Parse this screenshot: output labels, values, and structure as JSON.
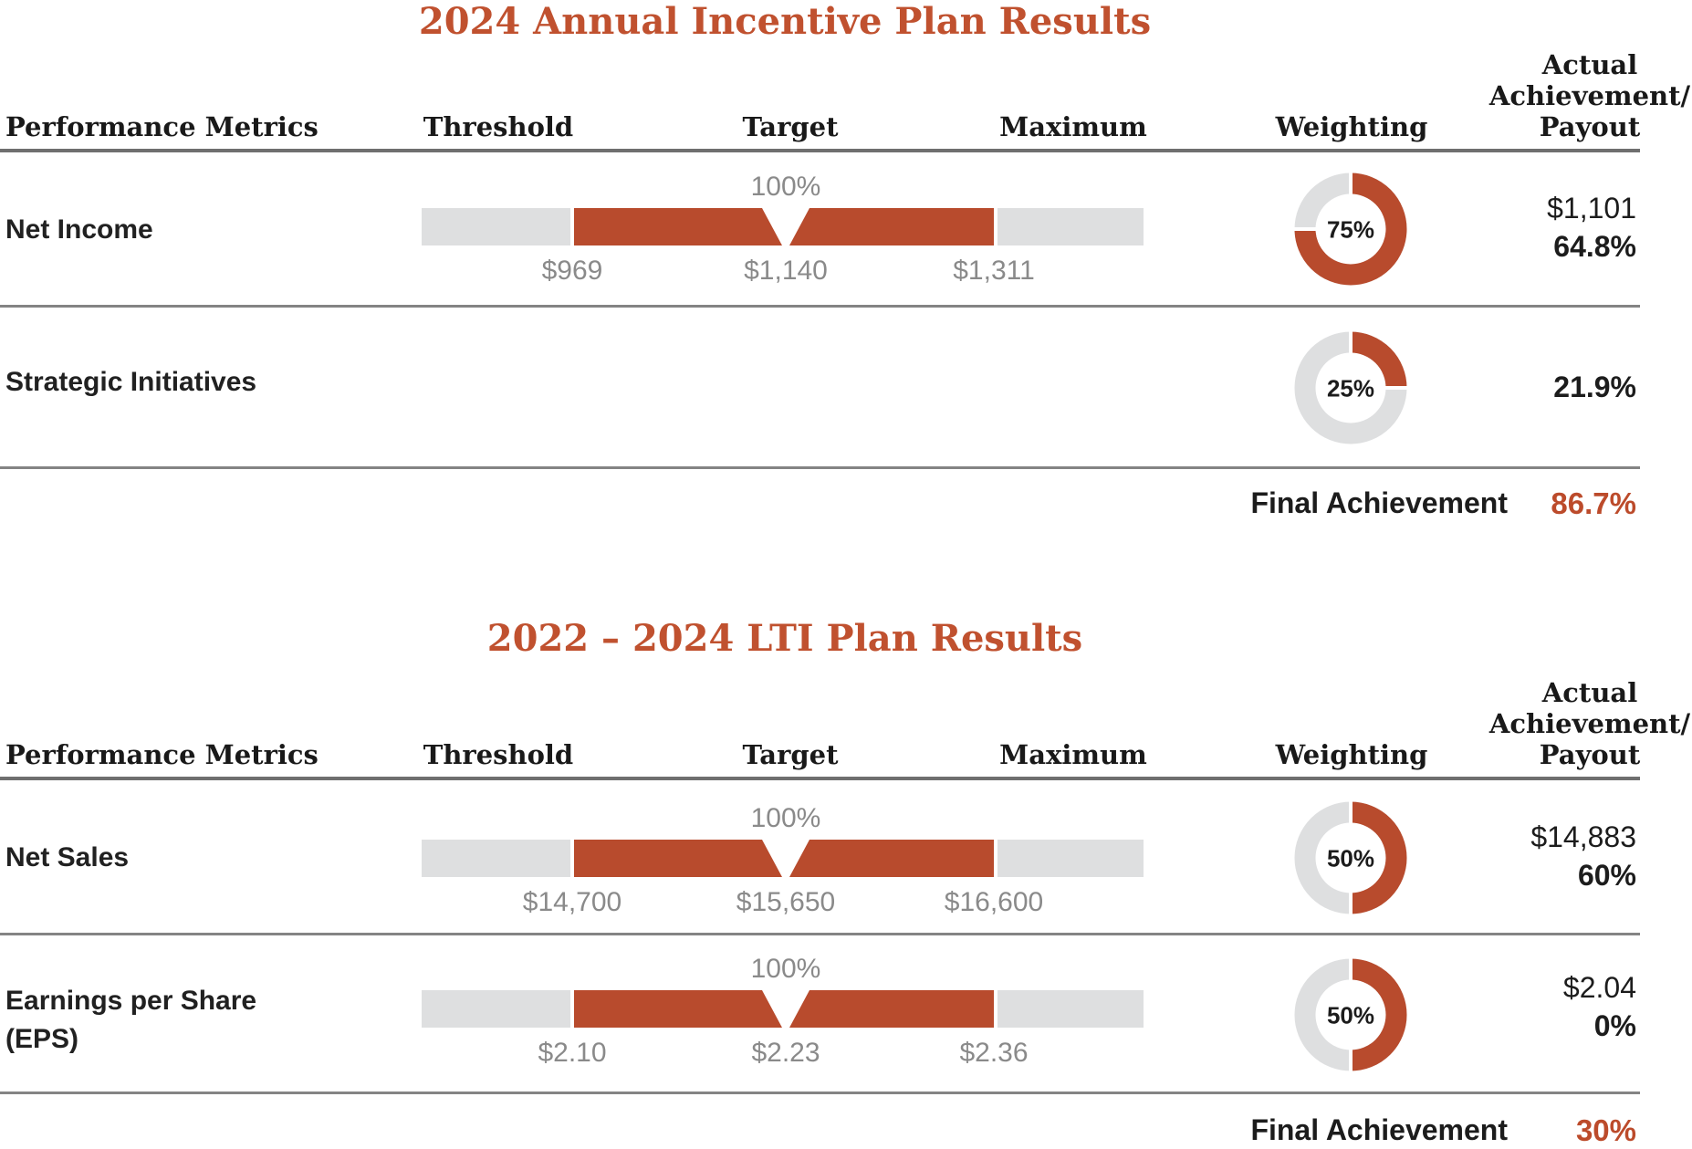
{
  "colors": {
    "accent": "#b84b2d",
    "title": "#c0512f",
    "track_gray": "#dedfe0",
    "rule_gray": "#6f6f6f",
    "note_gray": "#8a8a8a"
  },
  "tables": [
    {
      "title": "2024 Annual Incentive Plan Results",
      "headers": {
        "metrics": "Performance Metrics",
        "threshold": "Threshold",
        "target": "Target",
        "maximum": "Maximum",
        "weighting": "Weighting",
        "payout_line1": "Actual",
        "payout_line2": "Achievement/",
        "payout_line3": "Payout"
      },
      "rows": [
        {
          "metric": "Net Income",
          "target_pct": "100%",
          "threshold_label": "$969",
          "target_label": "$1,140",
          "maximum_label": "$1,311",
          "weighting_label": "75%",
          "weighting_value": 75,
          "payout_top": "$1,101",
          "payout_bottom": "64.8%"
        },
        {
          "metric": "Strategic Initiatives",
          "weighting_label": "25%",
          "weighting_value": 25,
          "payout_bottom": "21.9%"
        }
      ],
      "footer": {
        "label": "Final Achievement",
        "value": "86.7%"
      }
    },
    {
      "title": "2022 – 2024 LTI Plan Results",
      "headers": {
        "metrics": "Performance Metrics",
        "threshold": "Threshold",
        "target": "Target",
        "maximum": "Maximum",
        "weighting": "Weighting",
        "payout_line1": "Actual",
        "payout_line2": "Achievement/",
        "payout_line3": "Payout"
      },
      "rows": [
        {
          "metric": "Net Sales",
          "target_pct": "100%",
          "threshold_label": "$14,700",
          "target_label": "$15,650",
          "maximum_label": "$16,600",
          "weighting_label": "50%",
          "weighting_value": 50,
          "payout_top": "$14,883",
          "payout_bottom": "60%"
        },
        {
          "metric": "Earnings per Share",
          "metric_line2": "(EPS)",
          "target_pct": "100%",
          "threshold_label": "$2.10",
          "target_label": "$2.23",
          "maximum_label": "$2.36",
          "weighting_label": "50%",
          "weighting_value": 50,
          "payout_top": "$2.04",
          "payout_bottom": "0%"
        }
      ],
      "footer": {
        "label": "Final Achievement",
        "value": "30%"
      }
    }
  ],
  "chart_data": [
    {
      "type": "bar",
      "title": "2024 Annual Incentive Plan Results",
      "columns": [
        "Performance Metrics",
        "Threshold",
        "Target",
        "Maximum",
        "Weighting",
        "Actual Achievement/Payout"
      ],
      "rows": [
        {
          "metric": "Net Income",
          "threshold": 969,
          "target": 1140,
          "maximum": 1311,
          "target_achievement": "100%",
          "actual": 1101,
          "weighting_pct": 75,
          "payout_pct": 64.8
        },
        {
          "metric": "Strategic Initiatives",
          "weighting_pct": 25,
          "payout_pct": 21.9
        }
      ],
      "final_achievement_pct": 86.7
    },
    {
      "type": "bar",
      "title": "2022 – 2024 LTI Plan Results",
      "columns": [
        "Performance Metrics",
        "Threshold",
        "Target",
        "Maximum",
        "Weighting",
        "Actual Achievement/Payout"
      ],
      "rows": [
        {
          "metric": "Net Sales",
          "threshold": 14700,
          "target": 15650,
          "maximum": 16600,
          "target_achievement": "100%",
          "actual": 14883,
          "weighting_pct": 50,
          "payout_pct": 60
        },
        {
          "metric": "Earnings per Share (EPS)",
          "threshold": 2.1,
          "target": 2.23,
          "maximum": 2.36,
          "target_achievement": "100%",
          "actual": 2.04,
          "weighting_pct": 50,
          "payout_pct": 0
        }
      ],
      "final_achievement_pct": 30
    }
  ]
}
